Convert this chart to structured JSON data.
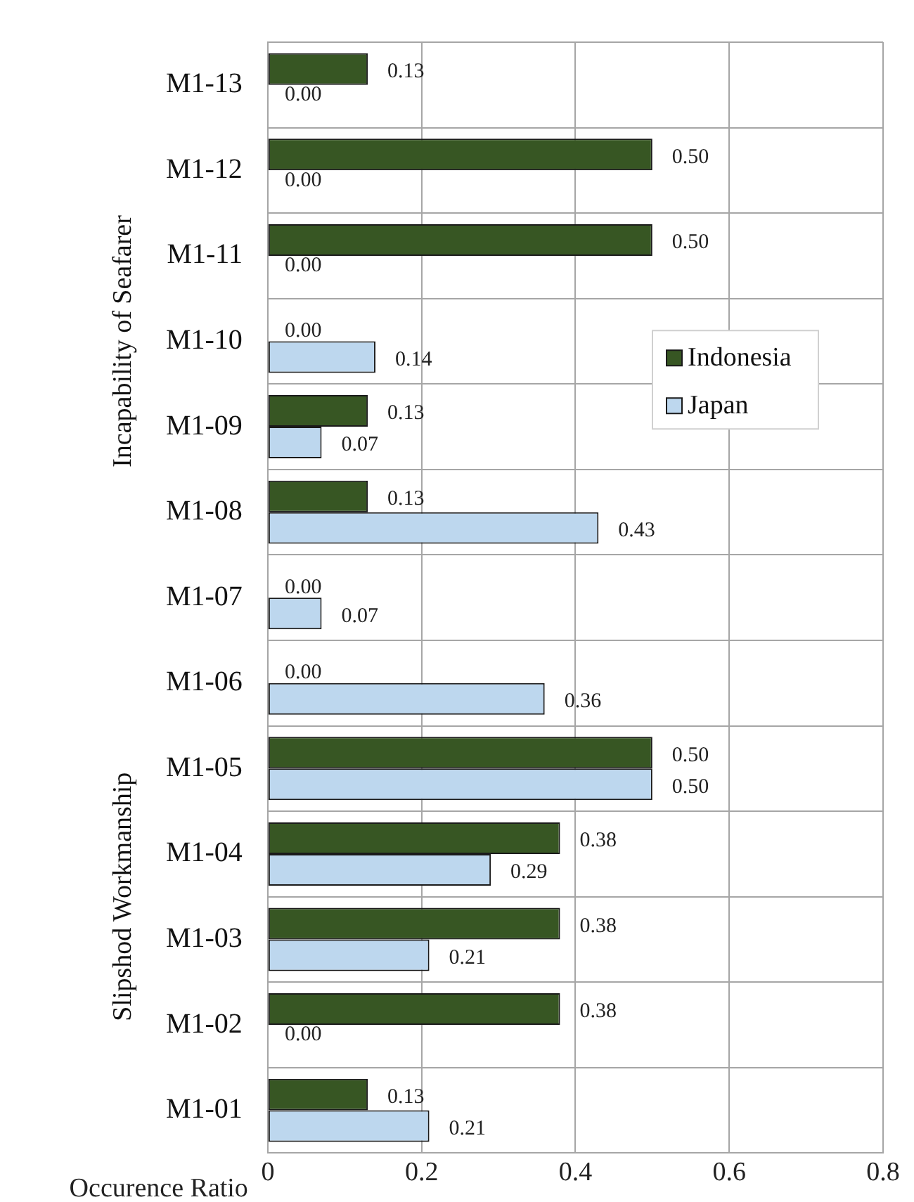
{
  "chart_data": {
    "type": "bar",
    "orientation": "horizontal",
    "xlabel": "Occurence Ratio",
    "categories": [
      "M1-13",
      "M1-12",
      "M1-11",
      "M1-10",
      "M1-09",
      "M1-08",
      "M1-07",
      "M1-06",
      "M1-05",
      "M1-04",
      "M1-03",
      "M1-02",
      "M1-01"
    ],
    "series": [
      {
        "name": "Indonesia",
        "color": "#375623",
        "values": [
          0.13,
          0.5,
          0.5,
          0,
          0.13,
          0.13,
          0,
          0,
          0.5,
          0.38,
          0.38,
          0.38,
          0.13
        ],
        "value_labels": [
          "0.13",
          "0.50",
          "0.50",
          "0.00",
          "0.13",
          "0.13",
          "0.00",
          "0.00",
          "0.50",
          "0.38",
          "0.38",
          "0.38",
          "0.13"
        ]
      },
      {
        "name": "Japan",
        "color": "#bdd7ee",
        "values": [
          0,
          0,
          0,
          0.14,
          0.07,
          0.43,
          0.07,
          0.36,
          0.5,
          0.29,
          0.21,
          0,
          0.21
        ],
        "value_labels": [
          "0.00",
          "0.00",
          "0.00",
          "0.14",
          "0.07",
          "0.43",
          "0.07",
          "0.36",
          "0.50",
          "0.29",
          "0.21",
          "0.00",
          "0.21"
        ]
      }
    ],
    "xlim": [
      0,
      0.8
    ],
    "xticks": [
      0,
      0.2,
      0.4,
      0.6,
      0.8
    ],
    "grid": true,
    "legend": "right",
    "annotations": [
      "Incapability of Seafarer",
      "Slipshod Workmanship"
    ]
  }
}
